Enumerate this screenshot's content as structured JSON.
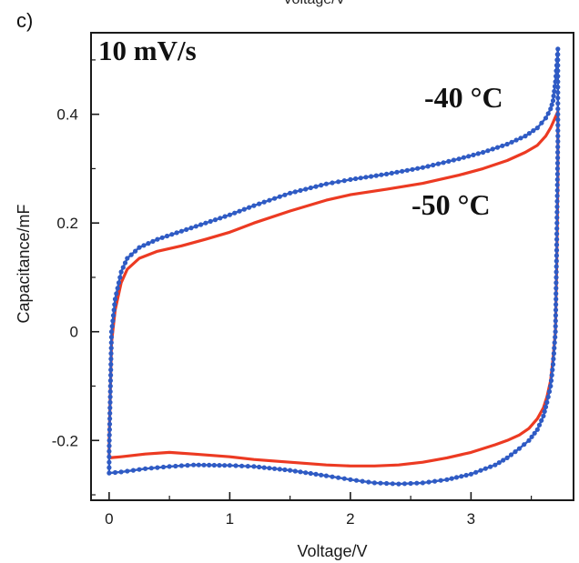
{
  "panel_label": "c)",
  "top_cut_text": "Voltage/V",
  "colors": {
    "series_blue": "#2f5bc4",
    "series_red": "#ec3a22",
    "axis": "#1a1a1a"
  },
  "chart_data": {
    "type": "line",
    "title": "",
    "xlabel": "Voltage/V",
    "ylabel": "Capacitance/mF",
    "xlim": [
      -0.15,
      3.85
    ],
    "ylim": [
      -0.31,
      0.55
    ],
    "xticks": [
      0,
      1,
      2,
      3
    ],
    "xtick_labels": [
      "0",
      "1",
      "2",
      "3"
    ],
    "yticks": [
      -0.2,
      0,
      0.2,
      0.4
    ],
    "ytick_labels": [
      "-0.2",
      "0",
      "0.2",
      "0.4"
    ],
    "grid": false,
    "legend": "none",
    "annotations": [
      {
        "text": "10 mV/s",
        "position": "top-left"
      },
      {
        "text": "-40 °C",
        "series": "blue"
      },
      {
        "text": "-50 °C",
        "series": "red"
      }
    ],
    "series": [
      {
        "label": "-40 °C",
        "color": "#2f5bc4",
        "marker": "dot",
        "x": [
          0.0,
          0.02,
          0.05,
          0.1,
          0.15,
          0.25,
          0.4,
          0.6,
          0.8,
          1.0,
          1.2,
          1.5,
          1.8,
          2.0,
          2.3,
          2.6,
          2.9,
          3.1,
          3.3,
          3.45,
          3.55,
          3.62,
          3.66,
          3.68,
          3.7,
          3.72,
          3.72,
          3.71,
          3.7,
          3.68,
          3.66,
          3.63,
          3.6,
          3.55,
          3.48,
          3.4,
          3.3,
          3.2,
          3.0,
          2.8,
          2.6,
          2.4,
          2.2,
          2.0,
          1.8,
          1.5,
          1.2,
          1.0,
          0.7,
          0.5,
          0.3,
          0.1,
          0.0,
          0.0
        ],
        "y": [
          -0.22,
          0.0,
          0.06,
          0.11,
          0.135,
          0.155,
          0.17,
          0.185,
          0.2,
          0.215,
          0.232,
          0.255,
          0.272,
          0.28,
          0.29,
          0.302,
          0.318,
          0.33,
          0.345,
          0.36,
          0.375,
          0.393,
          0.41,
          0.425,
          0.46,
          0.52,
          0.35,
          0.15,
          0.0,
          -0.06,
          -0.1,
          -0.13,
          -0.155,
          -0.18,
          -0.2,
          -0.215,
          -0.232,
          -0.245,
          -0.262,
          -0.272,
          -0.278,
          -0.28,
          -0.278,
          -0.272,
          -0.265,
          -0.255,
          -0.248,
          -0.246,
          -0.245,
          -0.248,
          -0.252,
          -0.258,
          -0.26,
          -0.22
        ]
      },
      {
        "label": "-50 °C",
        "color": "#ec3a22",
        "marker": "none",
        "x": [
          0.0,
          0.02,
          0.05,
          0.1,
          0.15,
          0.25,
          0.4,
          0.6,
          0.8,
          1.0,
          1.2,
          1.5,
          1.8,
          2.0,
          2.3,
          2.6,
          2.9,
          3.1,
          3.3,
          3.45,
          3.55,
          3.62,
          3.66,
          3.68,
          3.7,
          3.72,
          3.72,
          3.71,
          3.7,
          3.68,
          3.66,
          3.63,
          3.6,
          3.55,
          3.48,
          3.4,
          3.3,
          3.2,
          3.0,
          2.8,
          2.6,
          2.4,
          2.2,
          2.0,
          1.8,
          1.5,
          1.2,
          1.0,
          0.7,
          0.5,
          0.3,
          0.1,
          0.0,
          0.0
        ],
        "y": [
          -0.2,
          -0.02,
          0.04,
          0.09,
          0.115,
          0.135,
          0.148,
          0.158,
          0.17,
          0.183,
          0.2,
          0.222,
          0.242,
          0.252,
          0.262,
          0.273,
          0.288,
          0.3,
          0.315,
          0.33,
          0.343,
          0.36,
          0.375,
          0.385,
          0.395,
          0.405,
          0.28,
          0.12,
          0.0,
          -0.05,
          -0.09,
          -0.12,
          -0.14,
          -0.16,
          -0.178,
          -0.19,
          -0.2,
          -0.208,
          -0.222,
          -0.232,
          -0.24,
          -0.245,
          -0.247,
          -0.247,
          -0.245,
          -0.24,
          -0.235,
          -0.23,
          -0.225,
          -0.222,
          -0.225,
          -0.23,
          -0.232,
          -0.2
        ]
      }
    ]
  }
}
